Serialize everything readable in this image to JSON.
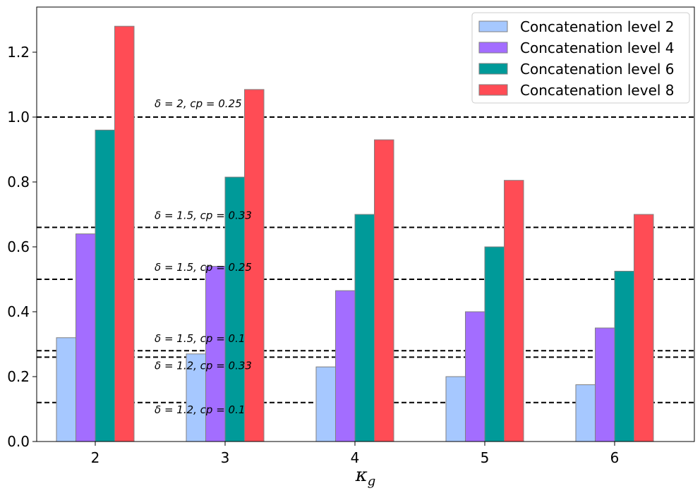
{
  "chart_data": {
    "type": "bar",
    "title": "",
    "xlabel": "κ_g",
    "xlabel_main": "κ",
    "xlabel_sub": "g",
    "ylabel": "",
    "ylim": [
      0,
      1.34
    ],
    "categories": [
      "2",
      "3",
      "4",
      "5",
      "6"
    ],
    "yticks": [
      "0.0",
      "0.2",
      "0.4",
      "0.6",
      "0.8",
      "1.0",
      "1.2"
    ],
    "ytick_values": [
      0.0,
      0.2,
      0.4,
      0.6,
      0.8,
      1.0,
      1.2
    ],
    "series": [
      {
        "name": "Concatenation level 2",
        "color": "#a6c8ff",
        "values": [
          0.32,
          0.27,
          0.23,
          0.2,
          0.175
        ]
      },
      {
        "name": "Concatenation level 4",
        "color": "#a36dff",
        "values": [
          0.64,
          0.54,
          0.465,
          0.4,
          0.35
        ]
      },
      {
        "name": "Concatenation level 6",
        "color": "#009a99",
        "values": [
          0.96,
          0.815,
          0.7,
          0.6,
          0.525
        ]
      },
      {
        "name": "Concatenation level 8",
        "color": "#ff4c55",
        "values": [
          1.28,
          1.085,
          0.93,
          0.805,
          0.7
        ]
      }
    ],
    "reference_lines": [
      {
        "value": 1.0,
        "label": "δ = 2, cp = 0.25"
      },
      {
        "value": 0.66,
        "label": "δ = 1.5, cp = 0.33"
      },
      {
        "value": 0.5,
        "label": "δ = 1.5, cp = 0.25"
      },
      {
        "value": 0.28,
        "label": "δ = 1.5, cp = 0.1"
      },
      {
        "value": 0.26,
        "label": "δ = 1.2, cp = 0.33"
      },
      {
        "value": 0.12,
        "label": "δ = 1.2, cp = 0.1"
      }
    ],
    "legend_position": "top-right",
    "grid": false
  }
}
